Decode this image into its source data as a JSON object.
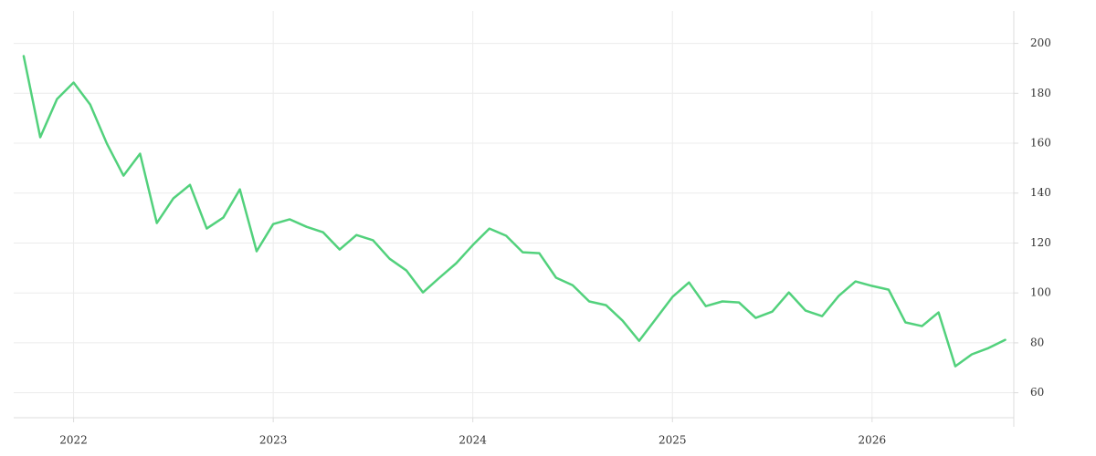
{
  "chart_data": {
    "type": "line",
    "x": [
      2021.75,
      2021.833,
      2021.917,
      2022,
      2022.083,
      2022.167,
      2022.25,
      2022.333,
      2022.417,
      2022.5,
      2022.583,
      2022.667,
      2022.75,
      2022.833,
      2022.917,
      2023,
      2023.083,
      2023.167,
      2023.25,
      2023.333,
      2023.417,
      2023.5,
      2023.583,
      2023.667,
      2023.75,
      2023.833,
      2023.917,
      2024,
      2024.083,
      2024.167,
      2024.25,
      2024.333,
      2024.417,
      2024.5,
      2024.583,
      2024.667,
      2024.75,
      2024.833,
      2024.917,
      2025,
      2025.083,
      2025.167,
      2025.25,
      2025.333,
      2025.417,
      2025.5,
      2025.583,
      2025.667,
      2025.75,
      2025.833,
      2025.917,
      2026,
      2026.083,
      2026.167,
      2026.25,
      2026.333,
      2026.417,
      2026.5,
      2026.583,
      2026.667
    ],
    "values": [
      194.9,
      162.4,
      177.7,
      184.3,
      175.5,
      159.8,
      147.0,
      155.8,
      128.0,
      137.9,
      143.3,
      125.8,
      130.2,
      141.5,
      116.7,
      127.6,
      129.5,
      126.5,
      124.3,
      117.4,
      123.2,
      121.1,
      113.7,
      109.0,
      100.2,
      106.1,
      111.9,
      119.2,
      125.8,
      122.9,
      116.3,
      115.9,
      106.1,
      103.1,
      96.6,
      95.1,
      88.9,
      80.8,
      89.6,
      98.4,
      104.2,
      94.7,
      96.6,
      96.2,
      90.0,
      92.5,
      100.2,
      92.9,
      90.7,
      98.8,
      104.6,
      102.8,
      101.3,
      88.2,
      86.7,
      92.2,
      70.6,
      75.4,
      77.9,
      81.2
    ],
    "color": "#52d17c",
    "xlim": [
      2021.7,
      2026.71
    ],
    "xticks": [
      2022,
      2023,
      2024,
      2025,
      2026
    ],
    "ylim": [
      50,
      213
    ],
    "yticks": [
      60,
      80,
      100,
      120,
      140,
      160,
      180,
      200
    ],
    "grid": true
  }
}
